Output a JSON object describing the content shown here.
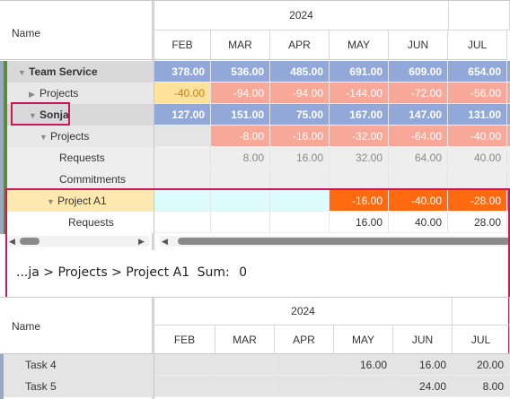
{
  "grid": {
    "name_header": "Name",
    "year": "2024",
    "months": [
      "FEB",
      "MAR",
      "APR",
      "MAY",
      "JUN",
      "JUL"
    ],
    "rows": [
      {
        "name": "Team Service",
        "values": [
          "378.00",
          "536.00",
          "485.00",
          "691.00",
          "609.00",
          "654.00"
        ]
      },
      {
        "name": "Projects",
        "values": [
          "-40.00",
          "-94.00",
          "-94.00",
          "-144.00",
          "-72.00",
          "-56.00"
        ]
      },
      {
        "name": "Sonja",
        "values": [
          "127.00",
          "151.00",
          "75.00",
          "167.00",
          "147.00",
          "131.00"
        ]
      },
      {
        "name": "Projects",
        "values": [
          "",
          "-8.00",
          "-16.00",
          "-32.00",
          "-64.00",
          "-40.00"
        ]
      },
      {
        "name": "Requests",
        "values": [
          "",
          "8.00",
          "16.00",
          "32.00",
          "64.00",
          "40.00"
        ]
      },
      {
        "name": "Commitments",
        "values": [
          "",
          "",
          "",
          "",
          "",
          ""
        ]
      },
      {
        "name": "Project A1",
        "values": [
          "",
          "",
          "",
          "-16.00",
          "-40.00",
          "-28.00"
        ]
      },
      {
        "name": "Requests",
        "values": [
          "",
          "",
          "",
          "16.00",
          "40.00",
          "28.00"
        ]
      }
    ],
    "colors": {
      "blue": "#92a8d8",
      "salmon": "#f8a898",
      "yellow": "#fde29a",
      "orange": "#ff6a10",
      "cyan": "#dcfcfc",
      "gray": "#e4e4e4",
      "green_bar": "#5a8a3c",
      "highlight": "#c8185a"
    }
  },
  "breadcrumb": {
    "path": "...ja > Projects > Project A1",
    "sum_label": "Sum:",
    "sum_value": "0"
  },
  "detail": {
    "name_header": "Name",
    "year": "2024",
    "months": [
      "FEB",
      "MAR",
      "APR",
      "MAY",
      "JUN",
      "JUL"
    ],
    "rows": [
      {
        "name": "Task 4",
        "values": [
          "",
          "",
          "",
          "16.00",
          "16.00",
          "20.00"
        ]
      },
      {
        "name": "Task 5",
        "values": [
          "",
          "",
          "",
          "",
          "24.00",
          "8.00"
        ]
      }
    ]
  }
}
